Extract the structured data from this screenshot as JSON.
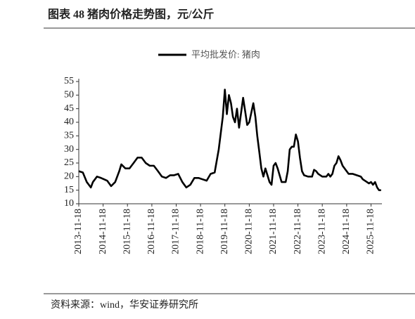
{
  "chart_data": {
    "type": "line",
    "title": "图表 48 猪肉价格走势图，元/公斤",
    "source": "资料来源：wind，华安证券研究所",
    "x": [
      "2013-11-18",
      "2014-01-18",
      "2014-03-18",
      "2014-05-18",
      "2014-06-18",
      "2014-08-18",
      "2014-10-18",
      "2015-01-18",
      "2015-03-18",
      "2015-05-18",
      "2015-07-18",
      "2015-08-18",
      "2015-10-18",
      "2015-12-18",
      "2016-02-18",
      "2016-04-18",
      "2016-06-18",
      "2016-08-18",
      "2016-10-18",
      "2016-12-18",
      "2017-02-18",
      "2017-04-18",
      "2017-06-18",
      "2017-08-18",
      "2017-10-18",
      "2017-12-18",
      "2018-02-18",
      "2018-04-18",
      "2018-06-18",
      "2018-08-18",
      "2018-10-18",
      "2018-12-18",
      "2019-02-18",
      "2019-04-18",
      "2019-06-18",
      "2019-08-18",
      "2019-10-18",
      "2019-11-18",
      "2019-12-18",
      "2020-01-18",
      "2020-02-18",
      "2020-03-18",
      "2020-04-18",
      "2020-05-18",
      "2020-06-18",
      "2020-08-18",
      "2020-09-18",
      "2020-10-18",
      "2020-11-18",
      "2021-01-18",
      "2021-02-18",
      "2021-03-18",
      "2021-04-18",
      "2021-05-18",
      "2021-06-18",
      "2021-07-18",
      "2021-09-18",
      "2021-10-18",
      "2021-11-18",
      "2021-12-18",
      "2022-01-18",
      "2022-03-18",
      "2022-05-18",
      "2022-06-18",
      "2022-07-18",
      "2022-08-18",
      "2022-09-18",
      "2022-10-18",
      "2022-11-18",
      "2022-12-18",
      "2023-01-18",
      "2023-02-18",
      "2023-04-18",
      "2023-06-18",
      "2023-07-18",
      "2023-08-18",
      "2023-09-18",
      "2023-11-18",
      "2024-01-18",
      "2024-02-18",
      "2024-03-18",
      "2024-04-18",
      "2024-05-18",
      "2024-06-18",
      "2024-07-18",
      "2024-08-18",
      "2024-09-18",
      "2024-10-18",
      "2024-12-18",
      "2025-02-18",
      "2025-04-18",
      "2025-06-18",
      "2025-07-18",
      "2025-09-18",
      "2025-10-18",
      "2025-11-18",
      "2025-12-18",
      "2026-01-18",
      "2026-02-18",
      "2026-03-18",
      "2026-04-18"
    ],
    "series": [
      {
        "name": "平均批发价: 猪肉",
        "color": "#000000",
        "values": [
          22,
          21.5,
          18,
          16,
          18,
          20,
          19.5,
          18.5,
          16.5,
          18,
          22,
          24.5,
          23,
          23,
          25,
          27,
          27,
          25,
          24,
          24,
          22,
          20,
          19.5,
          20.5,
          20.5,
          21,
          18,
          16,
          17,
          19.5,
          19.5,
          19,
          18.5,
          21,
          21.5,
          30,
          42,
          52,
          43,
          50,
          47,
          42,
          40,
          45,
          38,
          49,
          44,
          39,
          40,
          47,
          42,
          35,
          29,
          23,
          20,
          23,
          18,
          17,
          24,
          25,
          23,
          18,
          18,
          22,
          30,
          31,
          31,
          35.5,
          33,
          27,
          22,
          20.5,
          20,
          20,
          22.5,
          22,
          21,
          20,
          20,
          21,
          20,
          21,
          24,
          25,
          27.5,
          26,
          24,
          23,
          21,
          21,
          20.5,
          20,
          19,
          18,
          17.5,
          18,
          17,
          18,
          16,
          15,
          15
        ]
      }
    ],
    "xlim": [
      "2013-11-18",
      "2026-05-01"
    ],
    "xticks": [
      "2013-11-18",
      "2014-11-18",
      "2015-11-18",
      "2016-11-18",
      "2017-11-18",
      "2018-11-18",
      "2019-11-18",
      "2020-11-18",
      "2021-11-18",
      "2022-11-18",
      "2023-11-18",
      "2024-11-18",
      "2025-11-18"
    ],
    "ylim": [
      10,
      55
    ],
    "yticks": [
      10,
      15,
      20,
      25,
      30,
      35,
      40,
      45,
      50,
      55
    ]
  }
}
